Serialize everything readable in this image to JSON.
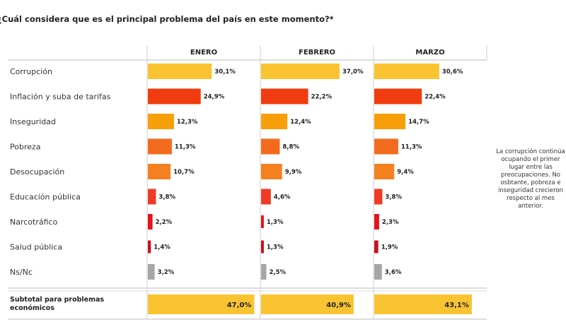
{
  "title": "¿Cuál considera que es el principal problema del país en este momento?*",
  "note_lines": [
    "La corrupción continúa",
    "ocupando el primer",
    "lugar entre las",
    "preocupaciones. No",
    "osbtante, pobreza e",
    "inseguridad crecieron",
    "respecto al mes",
    "anterior."
  ],
  "chart_data": {
    "type": "bar",
    "orientation": "horizontal",
    "title": "¿Cuál considera que es el principal problema del país en este momento?*",
    "categories": [
      "Corrupción",
      "Inflación y suba de tarifas",
      "Inseguridad",
      "Pobreza",
      "Desocupación",
      "Educación pública",
      "Narcotráfico",
      "Salud pública",
      "Ns/Nc"
    ],
    "category_colors": [
      "#f9c332",
      "#f03c0f",
      "#f7a00a",
      "#f26b1d",
      "#f48020",
      "#ef3b24",
      "#e5131b",
      "#c8101e",
      "#a6a6a6"
    ],
    "series": [
      {
        "name": "ENERO",
        "values": [
          30.1,
          24.9,
          12.3,
          11.3,
          10.7,
          3.8,
          2.2,
          1.4,
          3.2
        ],
        "labels": [
          "30,1%",
          "24,9%",
          "12,3%",
          "11,3%",
          "10,7%",
          "3,8%",
          "2,2%",
          "1,4%",
          "3,2%"
        ],
        "subtotal": 47.0,
        "subtotal_label": "47,0%"
      },
      {
        "name": "FEBRERO",
        "values": [
          37.0,
          22.2,
          12.4,
          8.8,
          9.9,
          4.6,
          1.3,
          1.3,
          2.5
        ],
        "labels": [
          "37,0%",
          "22,2%",
          "12,4%",
          "8,8%",
          "9,9%",
          "4,6%",
          "1,3%",
          "1,3%",
          "2,5%"
        ],
        "subtotal": 40.9,
        "subtotal_label": "40,9%"
      },
      {
        "name": "MARZO",
        "values": [
          30.6,
          22.4,
          14.7,
          11.3,
          9.4,
          3.8,
          2.3,
          1.9,
          3.6
        ],
        "labels": [
          "30,6%",
          "22,4%",
          "14,7%",
          "11,3%",
          "9,4%",
          "3,8%",
          "2,3%",
          "1,9%",
          "3,6%"
        ],
        "subtotal": 43.1,
        "subtotal_label": "43,1%"
      }
    ],
    "subtotal_label_lines": [
      "Subtotal para problemas",
      "económicos"
    ],
    "subtotal_color": "#f9c332",
    "unit": "%"
  }
}
